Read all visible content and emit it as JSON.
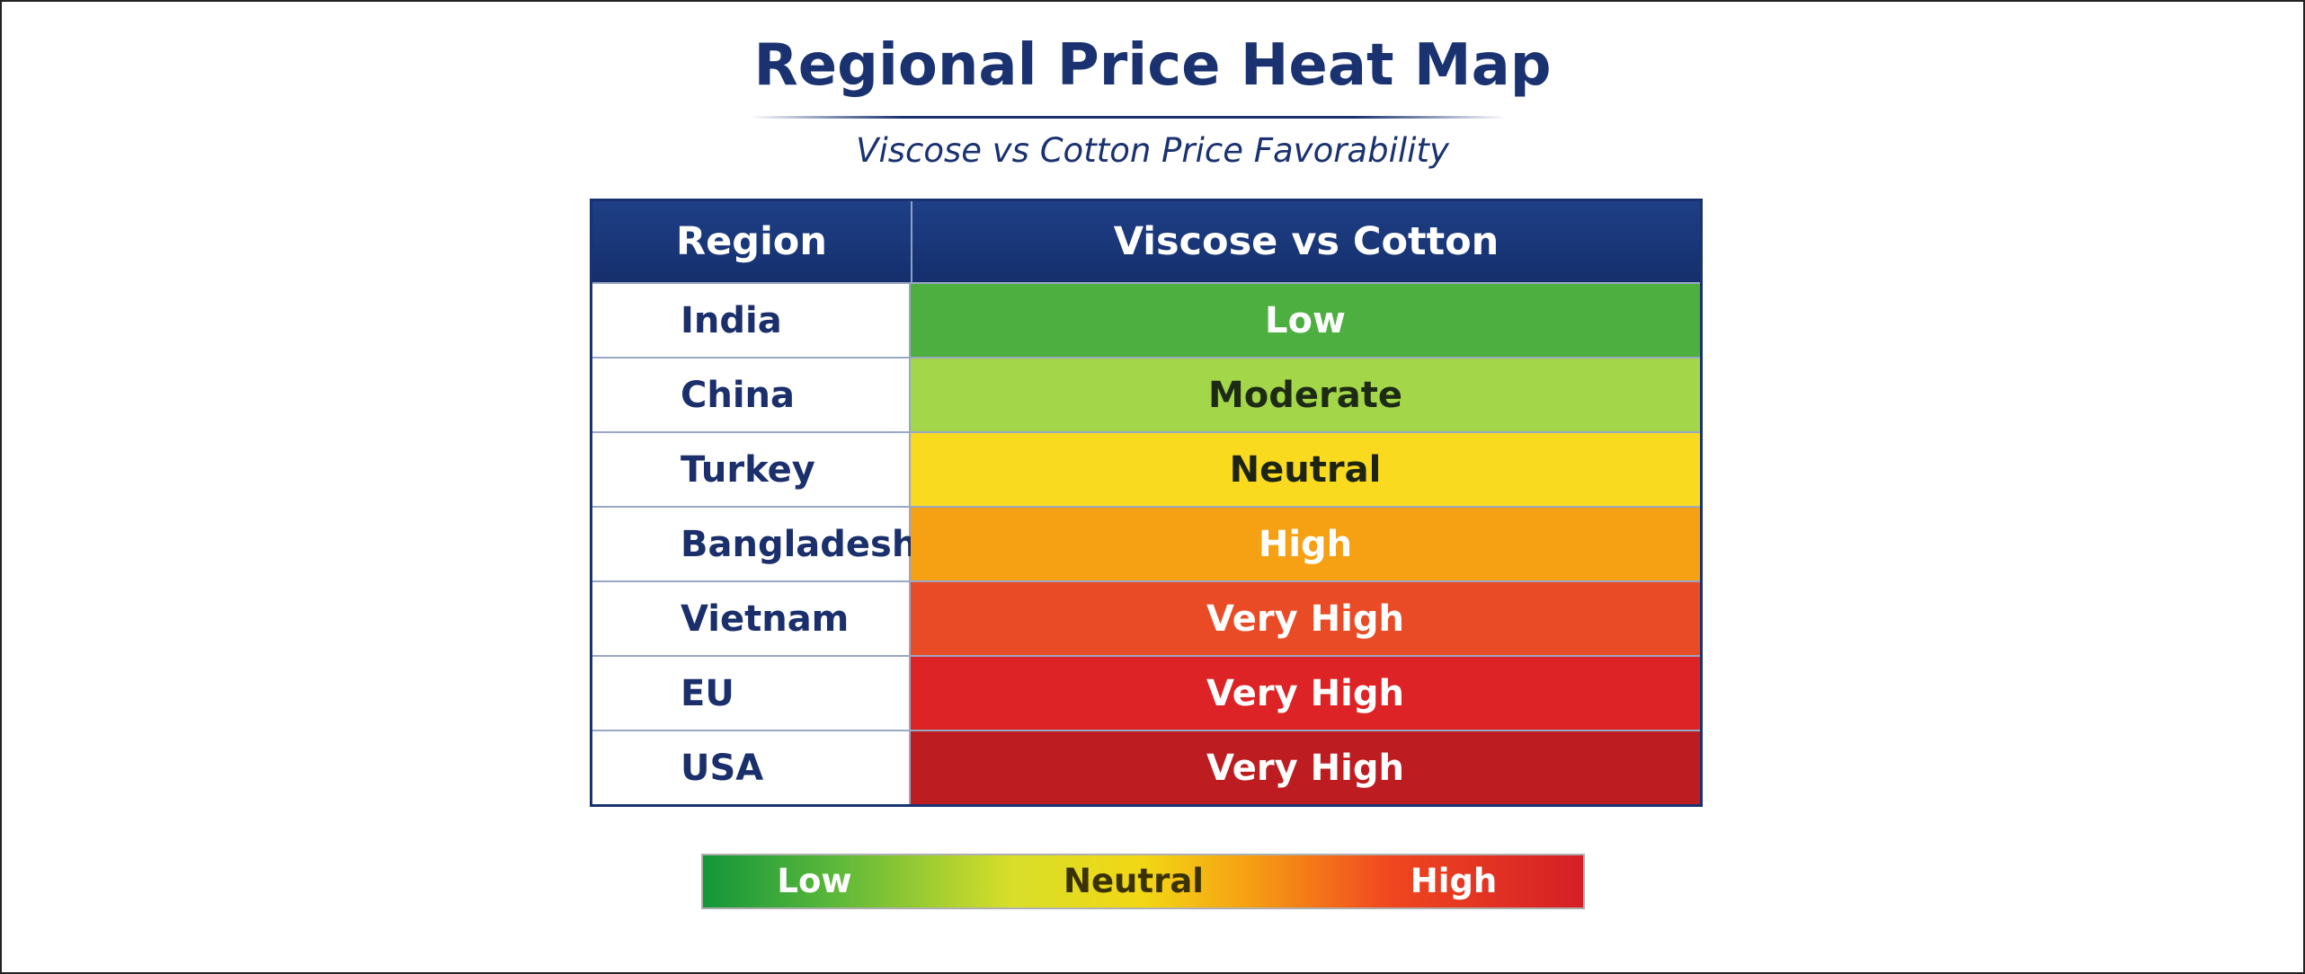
{
  "header": {
    "title": "Regional Price Heat Map",
    "subtitle": "Viscose vs Cotton Price Favorability"
  },
  "table": {
    "columns": [
      "Region",
      "Viscose vs Cotton"
    ],
    "rows": [
      {
        "region": "India",
        "level": "Low",
        "color": "#4caf3f",
        "text_color": "#ffffff"
      },
      {
        "region": "China",
        "level": "Moderate",
        "color": "#a3d648",
        "text_color": "#1d2a14"
      },
      {
        "region": "Turkey",
        "level": "Neutral",
        "color": "#f9da1f",
        "text_color": "#1d2414"
      },
      {
        "region": "Bangladesh",
        "level": "High",
        "color": "#f6a013",
        "text_color": "#ffffff"
      },
      {
        "region": "Vietnam",
        "level": "Very High",
        "color": "#ea4b27",
        "text_color": "#ffffff"
      },
      {
        "region": "EU",
        "level": "Very High",
        "color": "#dd2325",
        "text_color": "#ffffff"
      },
      {
        "region": "USA",
        "level": "Very High",
        "color": "#bd1c21",
        "text_color": "#ffffff"
      }
    ]
  },
  "legend": {
    "labels": [
      "Low",
      "Neutral",
      "High"
    ]
  }
}
